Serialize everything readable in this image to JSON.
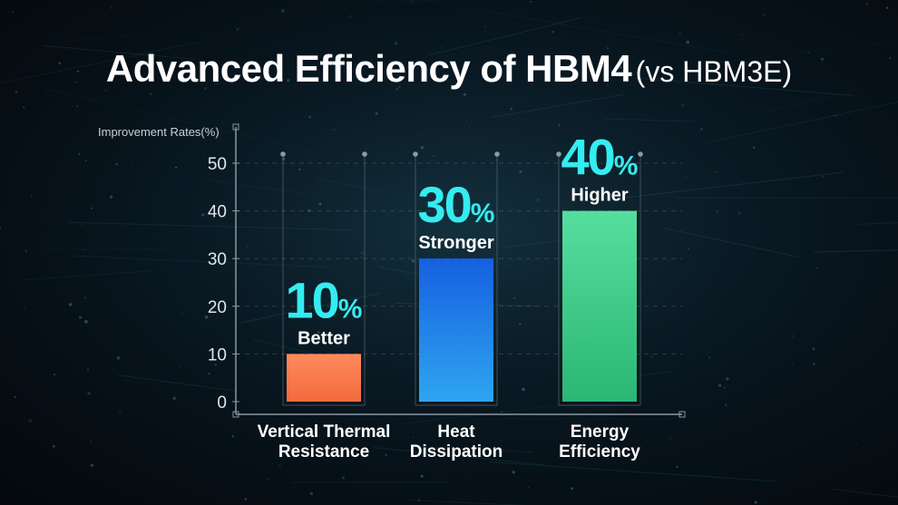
{
  "title": "Advanced Efficiency of HBM4",
  "subtitle": "(vs HBM3E)",
  "chart_data": {
    "type": "bar",
    "ylabel": "Improvement Rates(%)",
    "ylim": [
      0,
      50
    ],
    "yticks": [
      0,
      10,
      20,
      30,
      40,
      50
    ],
    "grid": true,
    "categories": [
      "Vertical Thermal Resistance",
      "Heat Dissipation",
      "Energy Efficiency"
    ],
    "category_lines": [
      [
        "Vertical Thermal",
        "Resistance"
      ],
      [
        "Heat",
        "Dissipation"
      ],
      [
        "Energy",
        "Efficiency"
      ]
    ],
    "values": [
      10,
      30,
      40
    ],
    "value_labels": [
      "10",
      "30",
      "40"
    ],
    "value_unit": "%",
    "descriptors": [
      "Better",
      "Stronger",
      "Higher"
    ],
    "colors": {
      "bar_1": "#ff7f50",
      "bar_2": "#1e6fe0",
      "bar_3": "#3ccf86",
      "value_text": "#35ecf0"
    }
  }
}
